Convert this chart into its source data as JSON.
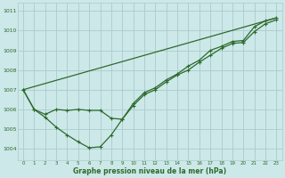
{
  "title": "Graphe pression niveau de la mer (hPa)",
  "bg_color": "#cce8e8",
  "grid_color": "#aacccc",
  "line_color": "#2d6a2d",
  "xlim": [
    -0.5,
    23.5
  ],
  "ylim": [
    1003.4,
    1011.4
  ],
  "xticks": [
    0,
    1,
    2,
    3,
    4,
    5,
    6,
    7,
    8,
    9,
    10,
    11,
    12,
    13,
    14,
    15,
    16,
    17,
    18,
    19,
    20,
    21,
    22,
    23
  ],
  "yticks": [
    1004,
    1005,
    1006,
    1007,
    1008,
    1009,
    1010,
    1011
  ],
  "series1_x": [
    0,
    1,
    2,
    3,
    4,
    5,
    6,
    7,
    8,
    9,
    10,
    11,
    12,
    13,
    14,
    15,
    16,
    17,
    18,
    19,
    20,
    21,
    22,
    23
  ],
  "series1_y": [
    1007.0,
    1006.0,
    1005.6,
    1005.1,
    1004.7,
    1004.35,
    1004.05,
    1004.1,
    1004.7,
    1005.5,
    1006.3,
    1006.85,
    1007.1,
    1007.5,
    1007.8,
    1008.2,
    1008.5,
    1009.0,
    1009.2,
    1009.45,
    1009.5,
    1010.2,
    1010.5,
    1010.65
  ],
  "series2_x": [
    0,
    1,
    2,
    3,
    4,
    5,
    6,
    7,
    8,
    9,
    10,
    11,
    12,
    13,
    14,
    15,
    16,
    17,
    18,
    19,
    20,
    21,
    22,
    23
  ],
  "series2_y": [
    1007.0,
    1006.0,
    1005.75,
    1006.0,
    1005.95,
    1006.0,
    1005.95,
    1005.95,
    1005.55,
    1005.5,
    1006.2,
    1006.75,
    1007.0,
    1007.4,
    1007.75,
    1008.0,
    1008.4,
    1008.75,
    1009.1,
    1009.35,
    1009.4,
    1009.95,
    1010.35,
    1010.55
  ],
  "series3_x": [
    0,
    23
  ],
  "series3_y": [
    1007.0,
    1010.65
  ]
}
